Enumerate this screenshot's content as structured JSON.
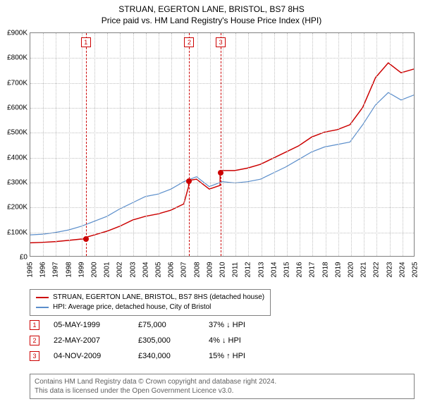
{
  "title": "STRUAN, EGERTON LANE, BRISTOL, BS7 8HS",
  "subtitle": "Price paid vs. HM Land Registry's House Price Index (HPI)",
  "chart": {
    "type": "line",
    "y_axis": {
      "min": 0,
      "max": 900,
      "ticks": [
        0,
        100,
        200,
        300,
        400,
        500,
        600,
        700,
        800,
        900
      ],
      "tick_labels": [
        "£0",
        "£100K",
        "£200K",
        "£300K",
        "£400K",
        "£500K",
        "£600K",
        "£700K",
        "£800K",
        "£900K"
      ],
      "label_fontsize": 10
    },
    "x_axis": {
      "min": 1995,
      "max": 2025,
      "ticks": [
        1995,
        1996,
        1997,
        1998,
        1999,
        2000,
        2001,
        2002,
        2003,
        2004,
        2005,
        2006,
        2007,
        2008,
        2009,
        2010,
        2011,
        2012,
        2013,
        2014,
        2015,
        2016,
        2017,
        2018,
        2019,
        2020,
        2021,
        2022,
        2023,
        2024,
        2025
      ],
      "label_fontsize": 10
    },
    "grid_color": "#c0c0c0",
    "background_color": "#ffffff",
    "border_color": "#808080",
    "series": [
      {
        "name": "price_paid",
        "label": "STRUAN, EGERTON LANE, BRISTOL, BS7 8HS (detached house)",
        "color": "#cc0000",
        "line_width": 1.5,
        "x": [
          1995,
          1996,
          1997,
          1998,
          1999.33,
          1999.34,
          2000,
          2001,
          2002,
          2003,
          2004,
          2005,
          2006,
          2007,
          2007.38,
          2007.39,
          2008,
          2009,
          2009.84,
          2009.85,
          2010,
          2011,
          2012,
          2013,
          2014,
          2015,
          2016,
          2017,
          2018,
          2019,
          2020,
          2021,
          2022,
          2023,
          2024,
          2025
        ],
        "y": [
          53,
          55,
          58,
          63,
          70,
          75,
          85,
          100,
          120,
          145,
          160,
          170,
          185,
          210,
          280,
          305,
          310,
          270,
          285,
          340,
          345,
          345,
          355,
          370,
          395,
          420,
          445,
          480,
          500,
          510,
          530,
          600,
          720,
          780,
          740,
          755
        ]
      },
      {
        "name": "hpi",
        "label": "HPI: Average price, detached house, City of Bristol",
        "color": "#5b8ecb",
        "line_width": 1.2,
        "x": [
          1995,
          1996,
          1997,
          1998,
          1999,
          2000,
          2001,
          2002,
          2003,
          2004,
          2005,
          2006,
          2007,
          2008,
          2009,
          2010,
          2011,
          2012,
          2013,
          2014,
          2015,
          2016,
          2017,
          2018,
          2019,
          2020,
          2021,
          2022,
          2023,
          2024,
          2025
        ],
        "y": [
          85,
          88,
          95,
          105,
          120,
          140,
          160,
          190,
          215,
          240,
          250,
          270,
          300,
          320,
          280,
          300,
          295,
          300,
          310,
          335,
          360,
          390,
          420,
          440,
          450,
          460,
          530,
          610,
          660,
          630,
          650
        ]
      }
    ],
    "reference_lines": [
      {
        "x": 1999.33,
        "color": "#cc0000"
      },
      {
        "x": 2007.39,
        "color": "#cc0000"
      },
      {
        "x": 2009.84,
        "color": "#cc0000"
      }
    ],
    "markers": [
      {
        "x": 1999.33,
        "y": 75,
        "color": "#cc0000"
      },
      {
        "x": 2007.39,
        "y": 305,
        "color": "#cc0000"
      },
      {
        "x": 2009.84,
        "y": 340,
        "color": "#cc0000"
      }
    ],
    "badges": [
      {
        "n": "1",
        "x": 1999.33
      },
      {
        "n": "2",
        "x": 2007.39
      },
      {
        "n": "3",
        "x": 2009.84
      }
    ]
  },
  "legend": {
    "items": [
      {
        "color": "#cc0000",
        "label": "STRUAN, EGERTON LANE, BRISTOL, BS7 8HS (detached house)"
      },
      {
        "color": "#5b8ecb",
        "label": "HPI: Average price, detached house, City of Bristol"
      }
    ]
  },
  "sales": [
    {
      "n": "1",
      "date": "05-MAY-1999",
      "price": "£75,000",
      "diff": "37% ↓ HPI"
    },
    {
      "n": "2",
      "date": "22-MAY-2007",
      "price": "£305,000",
      "diff": "4% ↓ HPI"
    },
    {
      "n": "3",
      "date": "04-NOV-2009",
      "price": "£340,000",
      "diff": "15% ↑ HPI"
    }
  ],
  "footer": {
    "line1": "Contains HM Land Registry data © Crown copyright and database right 2024.",
    "line2": "This data is licensed under the Open Government Licence v3.0."
  }
}
